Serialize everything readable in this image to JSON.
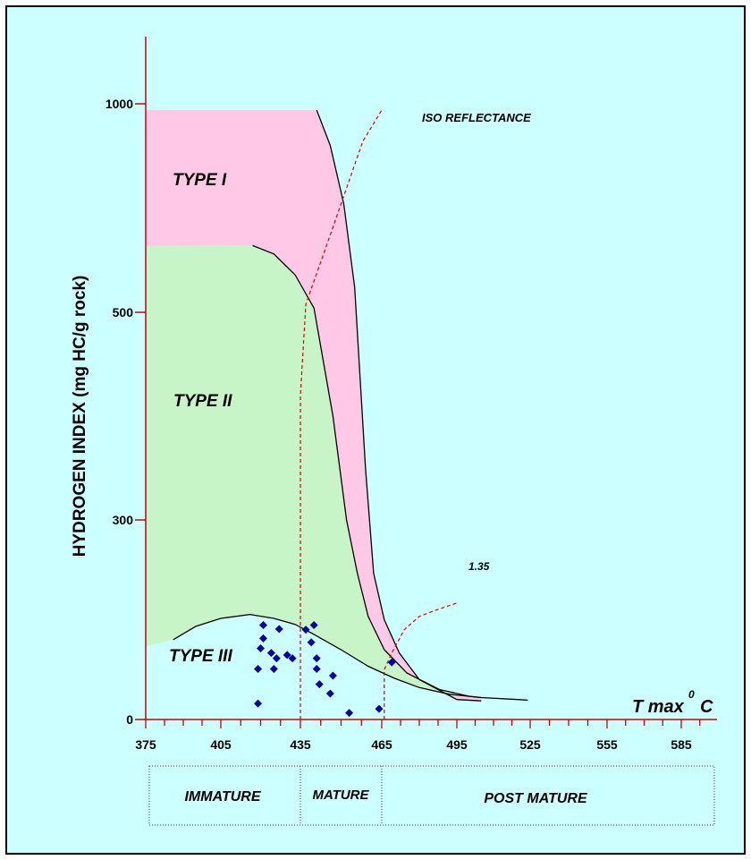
{
  "colors": {
    "background": "#ccffff",
    "frame": "#000000",
    "axis": "#cc0000",
    "type1_fill": "#ffc8e6",
    "type2_fill": "#c8f5c8",
    "iso_line": "#dd0000",
    "point": "#0000aa"
  },
  "chart_data": {
    "type": "scatter",
    "xlabel": "T max 0 C",
    "xlabel_main": "T max",
    "xlabel_sup": "0",
    "xlabel_unit": "C",
    "ylabel": "HYDROGEN INDEX (mg HC/g rock)",
    "x_ticks": [
      375,
      405,
      435,
      465,
      495,
      525,
      555,
      585
    ],
    "y_ticks": [
      0,
      300,
      500,
      1000
    ],
    "zones": [
      {
        "name": "TYPE I",
        "boundary": [
          [
            441,
            985
          ],
          [
            446,
            900
          ],
          [
            451,
            760
          ],
          [
            455,
            560
          ],
          [
            459,
            350
          ],
          [
            462,
            220
          ],
          [
            466,
            150
          ],
          [
            472,
            100
          ],
          [
            480,
            60
          ],
          [
            495,
            30
          ],
          [
            505,
            28
          ]
        ]
      },
      {
        "name": "TYPE II",
        "boundary": [
          [
            417,
            660
          ],
          [
            425,
            640
          ],
          [
            433,
            590
          ],
          [
            440,
            510
          ],
          [
            447,
            400
          ],
          [
            452,
            300
          ],
          [
            456,
            220
          ],
          [
            460,
            155
          ],
          [
            466,
            105
          ],
          [
            475,
            70
          ],
          [
            488,
            45
          ],
          [
            500,
            35
          ],
          [
            505,
            33
          ]
        ]
      },
      {
        "name": "TYPE III",
        "boundary": [
          [
            386,
            120
          ],
          [
            395,
            140
          ],
          [
            405,
            152
          ],
          [
            416,
            158
          ],
          [
            425,
            152
          ],
          [
            433,
            143
          ],
          [
            440,
            128
          ],
          [
            450,
            105
          ],
          [
            460,
            80
          ],
          [
            470,
            62
          ],
          [
            480,
            48
          ],
          [
            492,
            38
          ],
          [
            505,
            33
          ],
          [
            520,
            30
          ],
          [
            524,
            29
          ]
        ]
      }
    ],
    "iso_reflectance": [
      {
        "label": "ISO REFLECTANCE",
        "points": [
          [
            435,
            0
          ],
          [
            435,
            420
          ],
          [
            437,
            520
          ],
          [
            443,
            630
          ],
          [
            450,
            760
          ],
          [
            458,
            910
          ],
          [
            465,
            985
          ]
        ]
      },
      {
        "label": "1.35",
        "points": [
          [
            466,
            0
          ],
          [
            466,
            75
          ],
          [
            469,
            100
          ],
          [
            474,
            135
          ],
          [
            480,
            155
          ],
          [
            487,
            165
          ],
          [
            495,
            175
          ]
        ]
      }
    ],
    "maturity_zones": [
      "IMMATURE",
      "MATURE",
      "POST MATURE"
    ],
    "series": [
      {
        "values": [
          [
            419,
            24
          ],
          [
            419,
            76
          ],
          [
            420,
            107
          ],
          [
            421,
            122
          ],
          [
            421,
            142
          ],
          [
            424,
            100
          ],
          [
            425,
            76
          ],
          [
            426,
            92
          ],
          [
            427,
            136
          ],
          [
            430,
            97
          ],
          [
            432,
            92
          ],
          [
            437,
            135
          ],
          [
            439,
            116
          ],
          [
            440,
            142
          ],
          [
            441,
            92
          ],
          [
            441,
            76
          ],
          [
            442,
            53
          ],
          [
            446,
            39
          ],
          [
            447,
            66
          ],
          [
            453,
            10
          ],
          [
            464,
            16
          ],
          [
            469,
            86
          ]
        ]
      }
    ]
  }
}
